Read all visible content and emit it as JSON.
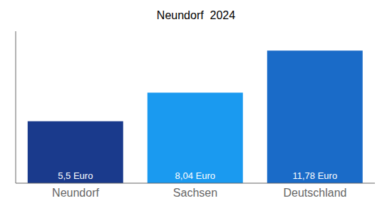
{
  "chart_data": {
    "type": "bar",
    "title": "Neundorf  2024",
    "categories": [
      "Neundorf",
      "Sachsen",
      "Deutschland"
    ],
    "values": [
      5.5,
      8.04,
      11.78
    ],
    "value_labels": [
      "5,5 Euro",
      "8,04 Euro",
      "11,78 Euro"
    ],
    "colors": [
      "#1a3a8c",
      "#1a9af0",
      "#1a6bc8"
    ],
    "ylim": [
      0,
      13.5
    ],
    "data_labels": true,
    "tick_labels": "x"
  }
}
